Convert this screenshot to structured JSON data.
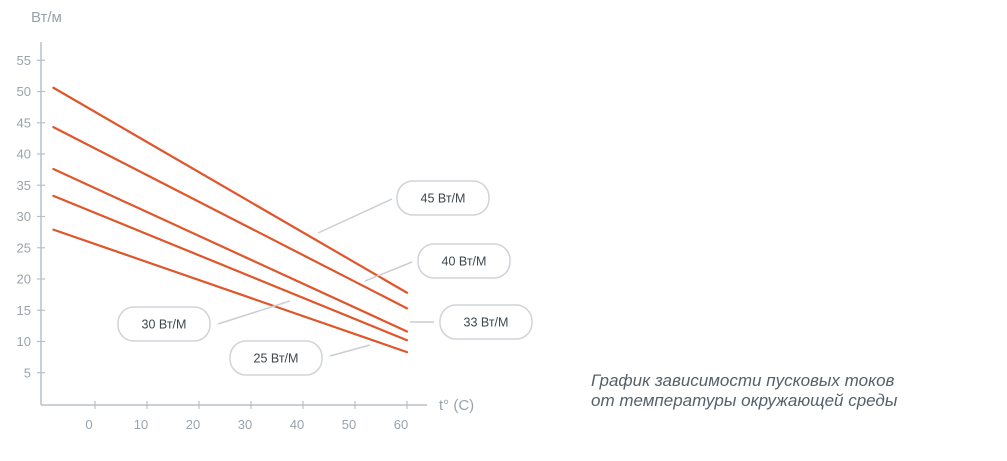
{
  "chart_data": {
    "type": "line",
    "ylabel": "Вт/м",
    "xlabel": "t° (C)",
    "x_ticks": [
      "0",
      "10",
      "20",
      "30",
      "40",
      "50",
      "60"
    ],
    "y_ticks": [
      "5",
      "10",
      "15",
      "20",
      "25",
      "30",
      "35",
      "40",
      "45",
      "50",
      "55"
    ],
    "xlim": [
      -10,
      60
    ],
    "ylim": [
      0,
      60
    ],
    "grid": false,
    "series": [
      {
        "name": "45 Вт/М",
        "x": [
          -8,
          60
        ],
        "y": [
          50.6,
          17.8
        ],
        "color": "#e0552a"
      },
      {
        "name": "40 Вт/М",
        "x": [
          -8,
          60
        ],
        "y": [
          44.3,
          15.3
        ],
        "color": "#e0552a"
      },
      {
        "name": "33 Вт/М",
        "x": [
          -8,
          60
        ],
        "y": [
          37.6,
          11.6
        ],
        "color": "#e0552a"
      },
      {
        "name": "30 Вт/М",
        "x": [
          -8,
          60
        ],
        "y": [
          33.3,
          10.2
        ],
        "color": "#e0552a"
      },
      {
        "name": "25 Вт/М",
        "x": [
          -8,
          60
        ],
        "y": [
          27.9,
          8.3
        ],
        "color": "#e0552a"
      }
    ],
    "annotations": [
      "45 Вт/М",
      "40 Вт/М",
      "33 Вт/М",
      "30 Вт/М",
      "25 Вт/М"
    ]
  },
  "caption": {
    "line1": "График зависимости пусковых токов",
    "line2": "от температуры окружающей среды"
  },
  "colors": {
    "line": "#e0552a",
    "axis": "#b9c0c6",
    "pill_border": "#cfd4d8",
    "leader": "#c9ced2"
  }
}
